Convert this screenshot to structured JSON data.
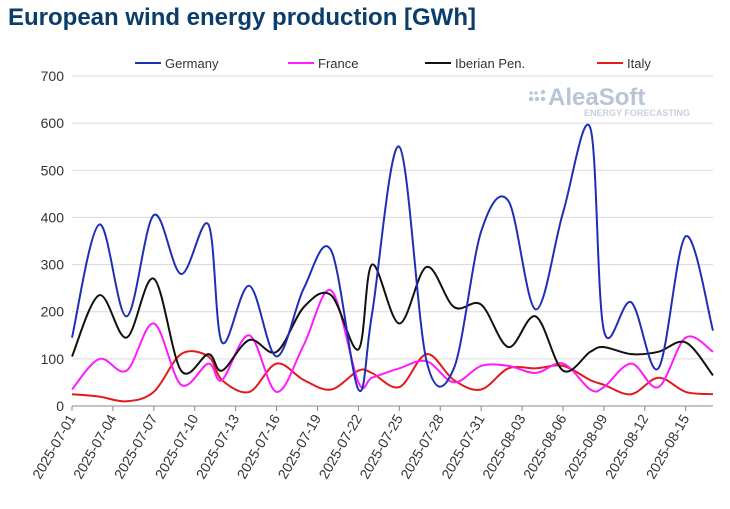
{
  "chart_data": {
    "type": "line",
    "title": "European wind energy production [GWh]",
    "xlabel": "",
    "ylabel": "",
    "ylim": [
      0,
      700
    ],
    "yticks": [
      0,
      100,
      200,
      300,
      400,
      500,
      600,
      700
    ],
    "grid": "horizontal",
    "legend_position": "top",
    "x": [
      0,
      2,
      4,
      6,
      8,
      10,
      11,
      13,
      15,
      17,
      19,
      21,
      22,
      24,
      26,
      28,
      30,
      32,
      34,
      36,
      38,
      39,
      41,
      43,
      45,
      47
    ],
    "categories": [
      "2025-07-01",
      "2025-07-04",
      "2025-07-07",
      "2025-07-10",
      "2025-07-13",
      "2025-07-16",
      "2025-07-19",
      "2025-07-22",
      "2025-07-25",
      "2025-07-28",
      "2025-07-31",
      "2025-08-03",
      "2025-08-06",
      "2025-08-09",
      "2025-08-12",
      "2025-08-15"
    ],
    "series": [
      {
        "name": "Germany",
        "color": "#1f2fb5",
        "values": [
          145,
          385,
          190,
          405,
          280,
          385,
          135,
          255,
          105,
          250,
          330,
          35,
          195,
          550,
          95,
          80,
          370,
          435,
          205,
          410,
          590,
          160,
          220,
          80,
          360,
          160
        ]
      },
      {
        "name": "France",
        "color": "#ff1aff",
        "values": [
          35,
          100,
          75,
          175,
          45,
          90,
          55,
          150,
          30,
          130,
          245,
          50,
          60,
          80,
          95,
          50,
          85,
          85,
          70,
          90,
          35,
          40,
          90,
          40,
          145,
          115
        ]
      },
      {
        "name": "Iberian Pen.",
        "color": "#111111",
        "values": [
          105,
          235,
          145,
          270,
          75,
          110,
          75,
          140,
          115,
          210,
          235,
          120,
          300,
          175,
          295,
          210,
          215,
          125,
          190,
          75,
          115,
          125,
          110,
          115,
          135,
          65
        ]
      },
      {
        "name": "Italy",
        "color": "#e31a1c",
        "values": [
          25,
          20,
          10,
          30,
          110,
          105,
          55,
          30,
          90,
          55,
          35,
          75,
          70,
          40,
          110,
          55,
          35,
          80,
          80,
          85,
          55,
          45,
          25,
          60,
          30,
          25
        ]
      }
    ]
  },
  "watermark": {
    "brand": "AleaSoft",
    "tagline": "ENERGY FORECASTING"
  }
}
